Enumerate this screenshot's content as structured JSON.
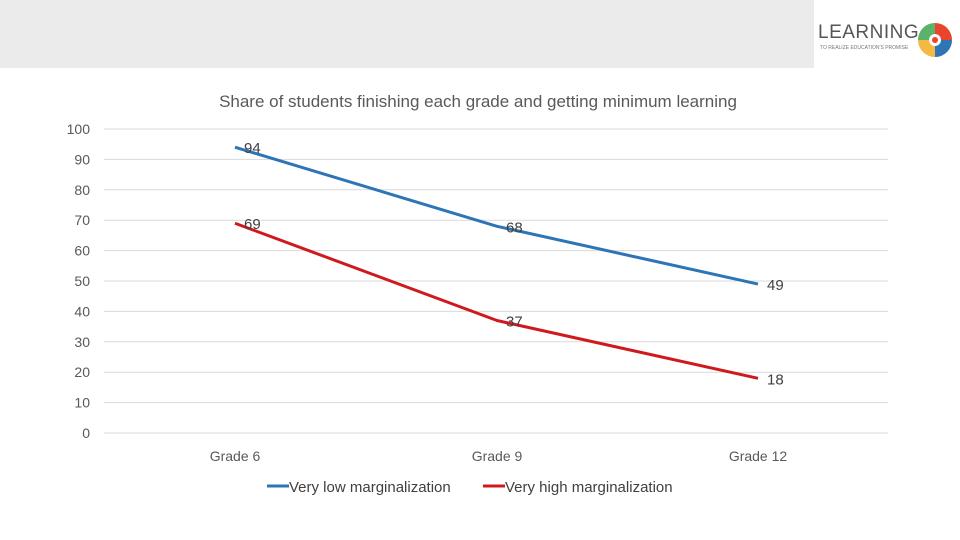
{
  "logo": {
    "small_text": "",
    "word": "LEARNING",
    "tagline": "TO REALIZE EDUCATION'S PROMISE"
  },
  "colors": {
    "series_low": "#2e75b6",
    "series_high": "#d0191e",
    "grid": "#d9d9d9",
    "text": "#595959"
  },
  "chart_data": {
    "type": "line",
    "title": "Share of students finishing each grade and getting minimum learning",
    "categories": [
      "Grade 6",
      "Grade 9",
      "Grade 12"
    ],
    "ylim": [
      0,
      100
    ],
    "yticks": [
      0,
      10,
      20,
      30,
      40,
      50,
      60,
      70,
      80,
      90,
      100
    ],
    "grid": true,
    "legend_position": "bottom",
    "series": [
      {
        "name": "Very low marginalization",
        "color": "#2e75b6",
        "values": [
          94,
          68,
          49
        ]
      },
      {
        "name": "Very high marginalization",
        "color": "#d0191e",
        "values": [
          69,
          37,
          18
        ]
      }
    ]
  }
}
